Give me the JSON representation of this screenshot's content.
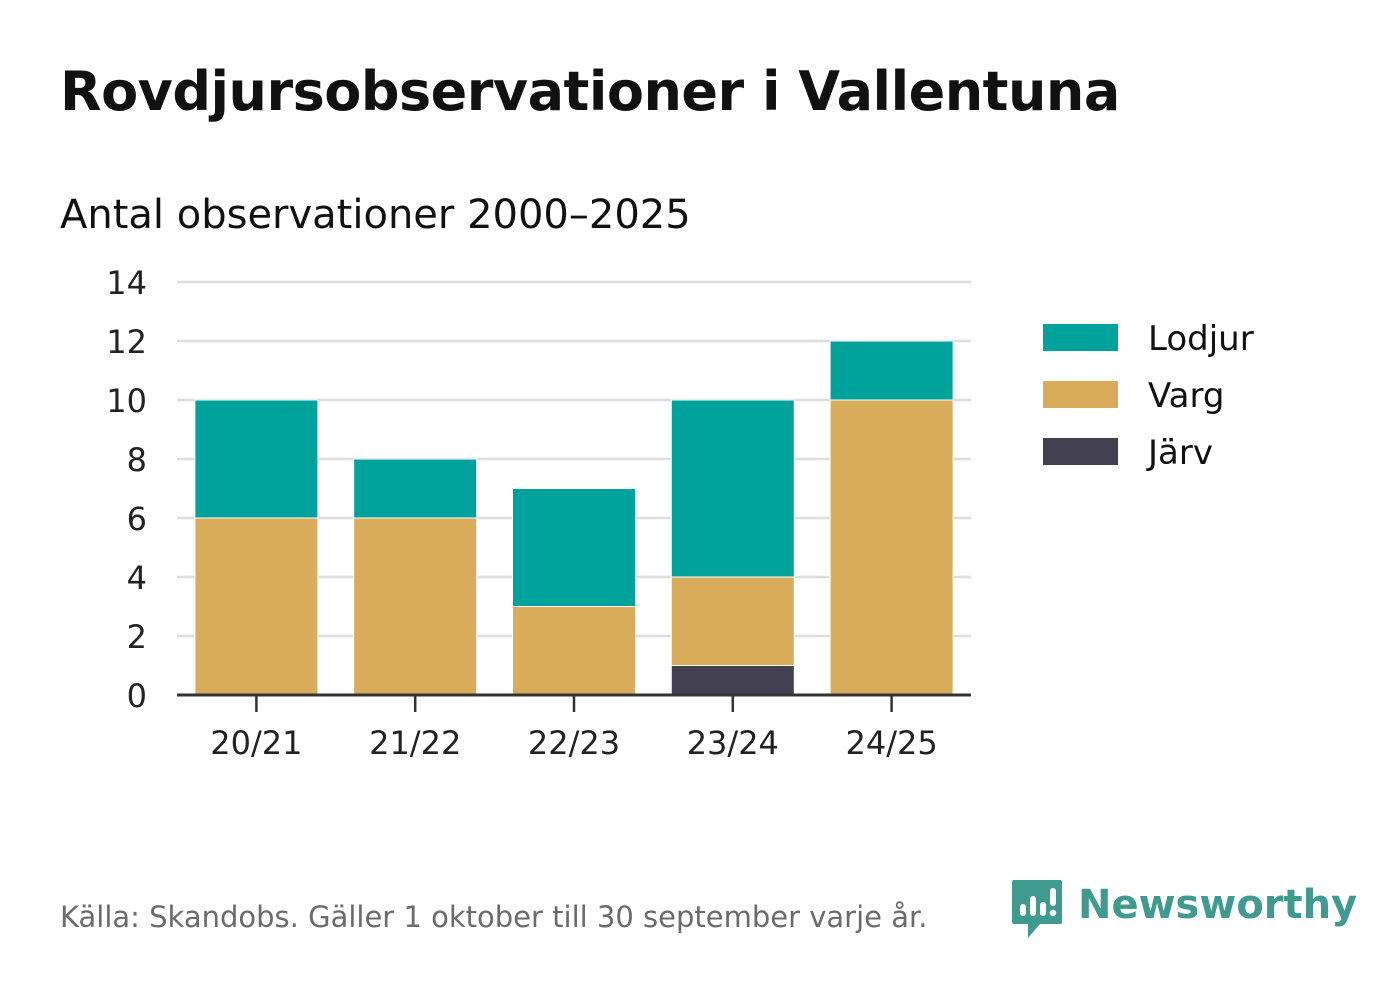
{
  "title": "Rovdjursobservationer i Vallentuna",
  "subtitle": "Antal observationer 2000–2025",
  "source": "Källa: Skandobs. Gäller 1 oktober till 30 september varje år.",
  "brand": {
    "name": "Newsworthy",
    "icon": "newsworthy-logo-icon",
    "color": "#3f9a8f"
  },
  "chart_data": {
    "type": "bar",
    "stacked": true,
    "categories": [
      "20/21",
      "21/22",
      "22/23",
      "23/24",
      "24/25"
    ],
    "series": [
      {
        "name": "Järv",
        "color": "#42404f",
        "values": [
          0,
          0,
          0,
          1,
          0
        ]
      },
      {
        "name": "Varg",
        "color": "#d9ac5b",
        "values": [
          6,
          6,
          3,
          3,
          10
        ]
      },
      {
        "name": "Lodjur",
        "color": "#00a39b",
        "values": [
          4,
          2,
          4,
          6,
          2
        ]
      }
    ],
    "legend": [
      {
        "name": "Lodjur",
        "color": "#00a39b"
      },
      {
        "name": "Varg",
        "color": "#d9ac5b"
      },
      {
        "name": "Järv",
        "color": "#42404f"
      }
    ],
    "legend_position": "right",
    "ylim": [
      0,
      14
    ],
    "yticks": [
      "0",
      "2",
      "4",
      "6",
      "8",
      "10",
      "12",
      "14"
    ],
    "grid": true,
    "xlabel": "",
    "ylabel": ""
  }
}
